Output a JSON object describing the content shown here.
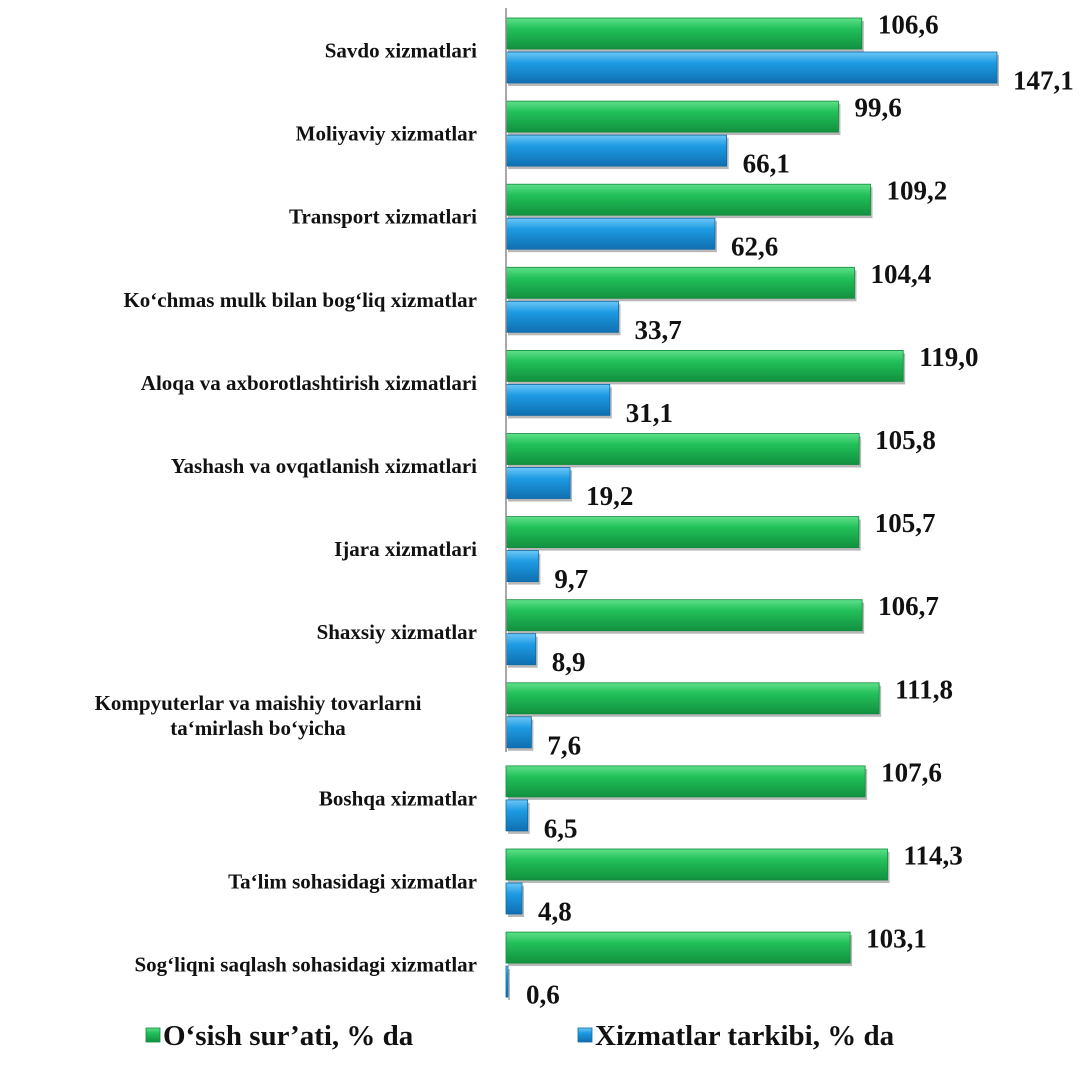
{
  "chart_data": {
    "type": "bar",
    "orientation": "horizontal",
    "categories": [
      [
        "Savdo xizmatlari"
      ],
      [
        "Moliyaviy xizmatlar"
      ],
      [
        "Transport xizmatlari"
      ],
      [
        "Ko‘chmas mulk bilan bog‘liq xizmatlar"
      ],
      [
        "Aloqa va axborotlashtirish xizmatlari"
      ],
      [
        "Yashash va ovqatlanish xizmatlari"
      ],
      [
        "Ijara xizmatlari"
      ],
      [
        "Shaxsiy xizmatlar"
      ],
      [
        "Kompyuterlar va maishiy tovarlarni",
        "ta‘mirlash bo‘yicha"
      ],
      [
        "Boshqa xizmatlar"
      ],
      [
        "Ta‘lim sohasidagi xizmatlar"
      ],
      [
        "Sog‘liqni saqlash sohasidagi xizmatlar"
      ]
    ],
    "series": [
      {
        "name": "O‘sish sur’ati, % da",
        "color": "#22c05a",
        "values": [
          106.6,
          99.6,
          109.2,
          104.4,
          119.0,
          105.8,
          105.7,
          106.7,
          111.8,
          107.6,
          114.3,
          103.1
        ],
        "labels": [
          "106,6",
          "99,6",
          "109,2",
          "104,4",
          "119,0",
          "105,8",
          "105,7",
          "106,7",
          "111,8",
          "107,6",
          "114,3",
          "103,1"
        ]
      },
      {
        "name": "Xizmatlar tarkibi, % da",
        "color": "#1e9be3",
        "values": [
          147.1,
          66.1,
          62.6,
          33.7,
          31.1,
          19.2,
          9.7,
          8.9,
          7.6,
          6.5,
          4.8,
          0.6
        ],
        "labels": [
          "147,1",
          "66,1",
          "62,6",
          "33,7",
          "31,1",
          "19,2",
          "9,7",
          "8,9",
          "7,6",
          "6,5",
          "4,8",
          "0,6"
        ]
      }
    ],
    "xlim": [
      0,
      150
    ],
    "grid": false,
    "legend": "bottom"
  }
}
